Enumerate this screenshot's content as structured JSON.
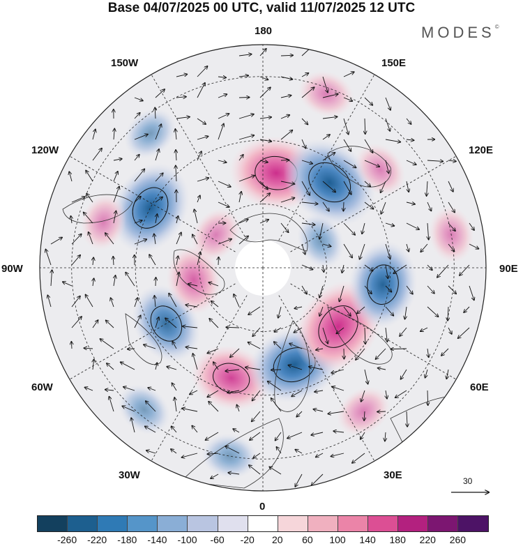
{
  "title": "Base 04/07/2025 00 UTC, valid 11/07/2025 12 UTC",
  "brand": "MODES",
  "brand_mark": "©",
  "longitude_labels": {
    "top": "180",
    "bottom": "0",
    "left": "90W",
    "right": "90E",
    "upper_left": "150W",
    "upper_right": "150E",
    "mid_left": "120W",
    "mid_right": "120E",
    "lower_left": "60W",
    "lower_right": "60E",
    "bottom_left": "30W",
    "bottom_right": "30E"
  },
  "vector_scale_label": "30",
  "colorbar": {
    "ticks": [
      "-260",
      "-220",
      "-180",
      "-140",
      "-100",
      "-60",
      "-20",
      "20",
      "60",
      "100",
      "140",
      "180",
      "220",
      "260"
    ],
    "colors": [
      "#13405e",
      "#1d5f8f",
      "#2f7ab5",
      "#5595c9",
      "#8aaed6",
      "#b9c5e1",
      "#e0e0ee",
      "#ffffff",
      "#f6d6da",
      "#f0b0bf",
      "#eb84a8",
      "#dc4f94",
      "#b3217f",
      "#7c1671",
      "#4d1366"
    ]
  },
  "anomalies": [
    {
      "lon": 172,
      "colat": 30,
      "value": 180
    },
    {
      "lon": 142,
      "colat": 34,
      "value": -200
    },
    {
      "lon": -118,
      "colat": 40,
      "value": -180
    },
    {
      "lon": -106,
      "colat": 52,
      "value": 60
    },
    {
      "lon": -60,
      "colat": 35,
      "value": -140
    },
    {
      "lon": -16,
      "colat": 36,
      "value": 140
    },
    {
      "lon": 18,
      "colat": 32,
      "value": -180
    },
    {
      "lon": 52,
      "colat": 30,
      "value": 200
    },
    {
      "lon": 82,
      "colat": 38,
      "value": -160
    },
    {
      "lon": 130,
      "colat": 48,
      "value": 60
    },
    {
      "lon": -125,
      "colat": 18,
      "value": 60
    },
    {
      "lon": -140,
      "colat": 55,
      "value": -60
    },
    {
      "lon": 100,
      "colat": 60,
      "value": 60
    },
    {
      "lon": -80,
      "colat": 22,
      "value": 100
    },
    {
      "lon": -40,
      "colat": 58,
      "value": -60
    },
    {
      "lon": 35,
      "colat": 55,
      "value": 60
    },
    {
      "lon": 160,
      "colat": 58,
      "value": 60
    },
    {
      "lon": -10,
      "colat": 60,
      "value": -60
    },
    {
      "lon": 115,
      "colat": 20,
      "value": -60
    }
  ]
}
